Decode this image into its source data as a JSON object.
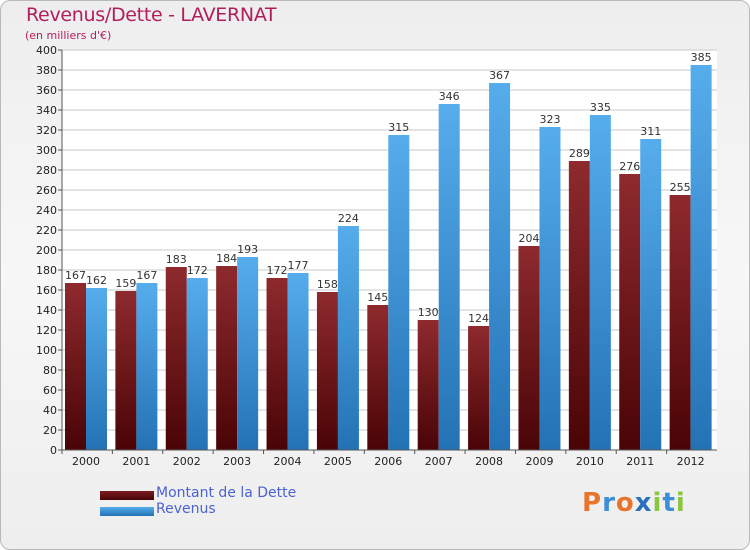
{
  "header": {
    "title": "Revenus/Dette - LAVERNAT",
    "subtitle": "(en milliers d'€)"
  },
  "colors": {
    "dette": "#7a1b1f",
    "revenus": "#3a9ee2",
    "title": "#b21e5a",
    "legend_text": "#4b62d1"
  },
  "chart_data": {
    "type": "bar",
    "categories": [
      "2000",
      "2001",
      "2002",
      "2003",
      "2004",
      "2005",
      "2006",
      "2007",
      "2008",
      "2009",
      "2010",
      "2011",
      "2012"
    ],
    "series": [
      {
        "name": "Montant de la Dette",
        "values": [
          167,
          159,
          183,
          184,
          172,
          158,
          145,
          130,
          124,
          204,
          289,
          276,
          255
        ]
      },
      {
        "name": "Revenus",
        "values": [
          162,
          167,
          172,
          193,
          177,
          224,
          315,
          346,
          367,
          323,
          335,
          311,
          385
        ]
      }
    ],
    "ylim": [
      0,
      400
    ],
    "ytick_step": 20,
    "grid": true,
    "legend_position": "bottom-left"
  },
  "legend": {
    "items": [
      {
        "label": "Montant de la Dette"
      },
      {
        "label": "Revenus"
      }
    ]
  },
  "logo": {
    "letters": [
      {
        "ch": "P",
        "color": "#e8742c"
      },
      {
        "ch": "r",
        "color": "#3c8fd6"
      },
      {
        "ch": "o",
        "color": "#e8742c"
      },
      {
        "ch": "x",
        "color": "#2c6fba"
      },
      {
        "ch": "i",
        "color": "#8cc63f"
      },
      {
        "ch": "t",
        "color": "#3c8fd6"
      },
      {
        "ch": "i",
        "color": "#8cc63f"
      }
    ]
  }
}
